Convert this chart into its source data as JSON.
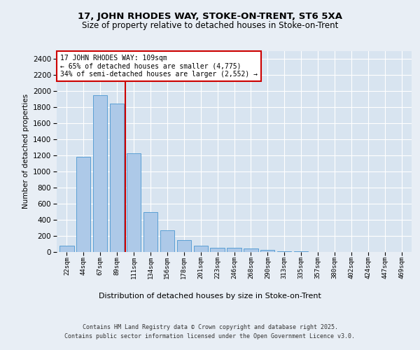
{
  "title_line1": "17, JOHN RHODES WAY, STOKE-ON-TRENT, ST6 5XA",
  "title_line2": "Size of property relative to detached houses in Stoke-on-Trent",
  "xlabel": "Distribution of detached houses by size in Stoke-on-Trent",
  "ylabel": "Number of detached properties",
  "categories": [
    "22sqm",
    "44sqm",
    "67sqm",
    "89sqm",
    "111sqm",
    "134sqm",
    "156sqm",
    "178sqm",
    "201sqm",
    "223sqm",
    "246sqm",
    "268sqm",
    "290sqm",
    "313sqm",
    "335sqm",
    "357sqm",
    "380sqm",
    "402sqm",
    "424sqm",
    "447sqm",
    "469sqm"
  ],
  "values": [
    75,
    1180,
    1950,
    1840,
    1230,
    500,
    270,
    150,
    80,
    50,
    50,
    45,
    30,
    10,
    5,
    3,
    2,
    1,
    0,
    0,
    0
  ],
  "bar_color": "#adc9e8",
  "bar_edge_color": "#5a9fd4",
  "vline_color": "#cc0000",
  "annotation_text": "17 JOHN RHODES WAY: 109sqm\n← 65% of detached houses are smaller (4,775)\n34% of semi-detached houses are larger (2,552) →",
  "annotation_box_color": "#ffffff",
  "annotation_box_edge": "#cc0000",
  "ylim": [
    0,
    2500
  ],
  "yticks": [
    0,
    200,
    400,
    600,
    800,
    1000,
    1200,
    1400,
    1600,
    1800,
    2000,
    2200,
    2400
  ],
  "background_color": "#e8eef5",
  "plot_bg_color": "#d8e4f0",
  "footer_line1": "Contains HM Land Registry data © Crown copyright and database right 2025.",
  "footer_line2": "Contains public sector information licensed under the Open Government Licence v3.0."
}
